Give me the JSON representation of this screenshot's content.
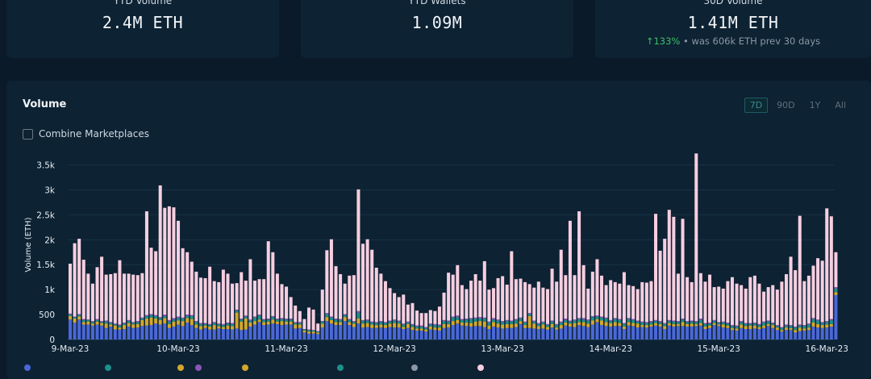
{
  "stats": [
    {
      "label": "YTD Volume",
      "value": "2.4M ETH",
      "sub_change": "",
      "sub_text": ""
    },
    {
      "label": "YTD Wallets",
      "value": "1.09M",
      "sub_change": "",
      "sub_text": ""
    },
    {
      "label": "30D Volume",
      "value": "1.41M ETH",
      "sub_change": "↑133%",
      "sub_text": " • was 606k ETH prev 30 days"
    }
  ],
  "panel": {
    "title": "Volume",
    "combine_label": "Combine Marketplaces",
    "ranges": [
      "7D",
      "90D",
      "1Y",
      "All"
    ],
    "active_range": "7D"
  },
  "colors": {
    "pink": "#f6cfe0",
    "blue": "#4a68d8",
    "yellow": "#d4a72c",
    "teal": "#1f8f8a",
    "purple": "#8a56b8",
    "grid": "#163246",
    "axis_text": "#e6edf3"
  },
  "chart_data": {
    "type": "bar",
    "stacked": true,
    "ylabel": "Volume (ETH)",
    "ylim": [
      0,
      3800
    ],
    "yticks": [
      0,
      500,
      1000,
      1500,
      2000,
      2500,
      3000,
      3500
    ],
    "ytick_labels": [
      "0",
      "500",
      "1k",
      "1.5k",
      "2k",
      "2.5k",
      "3k",
      "3.5k"
    ],
    "xtick_labels": [
      "9-Mar-23",
      "10-Mar-23",
      "11-Mar-23",
      "12-Mar-23",
      "13-Mar-23",
      "14-Mar-23",
      "15-Mar-23",
      "16-Mar-23"
    ],
    "grid": true,
    "totals": [
      1520,
      1930,
      2020,
      1600,
      1320,
      1120,
      1450,
      1660,
      1300,
      1310,
      1330,
      1590,
      1320,
      1320,
      1300,
      1290,
      1330,
      2570,
      1840,
      1770,
      3090,
      2640,
      2670,
      2650,
      2380,
      1830,
      1750,
      1560,
      1360,
      1240,
      1230,
      1460,
      1170,
      1150,
      1400,
      1320,
      1120,
      1130,
      1350,
      1180,
      1610,
      1180,
      1210,
      1210,
      1970,
      1750,
      1320,
      1110,
      1060,
      850,
      680,
      570,
      410,
      640,
      600,
      320,
      1000,
      1790,
      2010,
      1470,
      1310,
      1120,
      1280,
      1290,
      3010,
      1920,
      2010,
      1800,
      1440,
      1320,
      1170,
      1030,
      930,
      850,
      900,
      700,
      730,
      580,
      530,
      530,
      590,
      570,
      660,
      940,
      1340,
      1300,
      1490,
      1090,
      1010,
      1180,
      1310,
      1180,
      1570,
      1000,
      1030,
      1230,
      1270,
      1100,
      1770,
      1210,
      1220,
      1150,
      1110,
      1040,
      1160,
      1040,
      1010,
      1420,
      1160,
      1800,
      1290,
      2380,
      1290,
      2570,
      1490,
      1020,
      1360,
      1610,
      1280,
      1090,
      1190,
      1150,
      1120,
      1350,
      1090,
      1070,
      1010,
      1150,
      1140,
      1170,
      2520,
      1780,
      2020,
      2600,
      2460,
      1320,
      2420,
      1250,
      1150,
      3730,
      1330,
      1160,
      1300,
      1050,
      1060,
      1020,
      1170,
      1250,
      1120,
      1090,
      1020,
      1250,
      1280,
      1120,
      960,
      1050,
      1090,
      1000,
      1160,
      1310,
      1660,
      1390,
      2480,
      1170,
      1280,
      1480,
      1630,
      1580,
      2630,
      2470,
      1750
    ],
    "series": [
      {
        "name": "",
        "values": [
          400,
          340,
          400,
          300,
          300,
          280,
          300,
          280,
          230,
          260,
          200,
          200,
          210,
          260,
          230,
          240,
          270,
          280,
          290,
          320,
          300,
          320,
          230,
          260,
          300,
          270,
          340,
          290,
          230,
          200,
          230,
          200,
          200,
          220,
          210,
          210,
          200,
          220,
          190,
          200,
          260,
          300,
          350,
          290,
          300,
          320,
          310,
          290,
          300,
          300,
          220,
          230,
          140,
          120,
          120,
          110,
          240,
          370,
          320,
          290,
          290,
          370,
          290,
          250,
          320,
          240,
          250,
          230,
          230,
          240,
          230,
          250,
          240,
          240,
          210,
          230,
          190,
          180,
          180,
          160,
          200,
          190,
          180,
          230,
          240,
          290,
          320,
          280,
          270,
          260,
          270,
          270,
          250,
          210,
          260,
          240,
          220,
          230,
          230,
          250,
          310,
          230,
          230,
          220,
          210,
          220,
          200,
          240,
          200,
          220,
          280,
          260,
          250,
          290,
          270,
          250,
          300,
          350,
          290,
          270,
          260,
          270,
          270,
          210,
          280,
          270,
          240,
          250,
          240,
          260,
          280,
          260,
          210,
          280,
          260,
          270,
          270,
          260,
          260,
          270,
          280,
          210,
          230,
          290,
          270,
          240,
          230,
          190,
          180,
          230,
          210,
          210,
          220,
          210,
          230,
          270,
          230,
          190,
          160,
          190,
          190,
          140,
          170,
          180,
          190,
          260,
          240,
          230,
          240,
          260,
          890,
          920,
          460
        ]
      },
      {
        "name": "",
        "values": [
          70,
          80,
          60,
          50,
          60,
          40,
          60,
          50,
          90,
          40,
          80,
          40,
          80,
          70,
          70,
          70,
          120,
          140,
          150,
          100,
          90,
          110,
          80,
          100,
          80,
          100,
          90,
          120,
          70,
          70,
          50,
          60,
          90,
          50,
          40,
          70,
          70,
          320,
          170,
          220,
          80,
          70,
          50,
          60,
          60,
          80,
          50,
          80,
          60,
          60,
          80,
          70,
          40,
          40,
          40,
          30,
          80,
          80,
          70,
          60,
          60,
          80,
          60,
          70,
          100,
          80,
          80,
          70,
          60,
          60,
          60,
          70,
          90,
          80,
          40,
          80,
          60,
          40,
          40,
          40,
          60,
          50,
          60,
          80,
          70,
          80,
          70,
          60,
          70,
          70,
          90,
          100,
          110,
          70,
          90,
          80,
          80,
          80,
          80,
          70,
          60,
          60,
          240,
          100,
          60,
          80,
          50,
          70,
          40,
          70,
          60,
          60,
          80,
          60,
          80,
          70,
          80,
          60,
          90,
          80,
          70,
          80,
          60,
          50,
          70,
          60,
          80,
          40,
          50,
          40,
          50,
          50,
          60,
          50,
          50,
          40,
          80,
          50,
          60,
          40,
          50,
          50,
          50,
          40,
          30,
          60,
          50,
          40,
          40,
          70,
          60,
          70,
          60,
          40,
          50,
          40,
          60,
          50,
          30,
          50,
          40,
          50,
          70,
          40,
          50,
          80,
          70,
          60,
          60,
          50,
          60,
          70,
          50
        ]
      },
      {
        "name": "",
        "values": [
          30,
          30,
          30,
          40,
          30,
          30,
          30,
          20,
          40,
          30,
          20,
          40,
          30,
          40,
          30,
          40,
          30,
          50,
          50,
          50,
          40,
          40,
          50,
          40,
          50,
          50,
          40,
          60,
          50,
          40,
          30,
          30,
          40,
          30,
          40,
          40,
          40,
          40,
          40,
          40,
          40,
          70,
          80,
          40,
          40,
          50,
          40,
          40,
          40,
          40,
          30,
          30,
          20,
          30,
          20,
          20,
          40,
          60,
          50,
          50,
          40,
          40,
          40,
          30,
          120,
          50,
          50,
          40,
          40,
          50,
          40,
          40,
          50,
          40,
          50,
          30,
          40,
          40,
          40,
          30,
          40,
          50,
          40,
          60,
          50,
          70,
          60,
          50,
          60,
          80,
          60,
          50,
          60,
          60,
          50,
          60,
          50,
          60,
          50,
          70,
          50,
          50,
          40,
          40,
          40,
          40,
          40,
          50,
          50,
          50,
          50,
          40,
          50,
          60,
          50,
          60,
          70,
          50,
          60,
          70,
          40,
          60,
          60,
          50,
          60,
          60,
          40,
          50,
          40,
          50,
          40,
          40,
          40,
          40,
          50,
          40,
          50,
          40,
          40,
          40,
          60,
          50,
          40,
          40,
          30,
          40,
          40,
          40,
          40,
          50,
          40,
          30,
          40,
          40,
          60,
          50,
          30,
          30,
          40,
          40,
          40,
          50,
          40,
          50,
          60,
          70,
          70,
          40,
          50,
          80,
          70,
          60,
          50
        ]
      },
      {
        "name": "",
        "values": [
          20,
          10,
          20,
          20,
          10,
          20,
          20,
          20,
          20,
          20,
          20,
          20,
          20,
          20,
          20,
          20,
          20,
          20,
          20,
          20,
          20,
          30,
          30,
          30,
          30,
          20,
          30,
          20,
          20,
          20,
          20,
          20,
          20,
          20,
          20,
          20,
          20,
          20,
          20,
          20,
          20,
          20,
          20,
          20,
          20,
          20,
          20,
          20,
          20,
          20,
          20,
          20,
          10,
          10,
          10,
          10,
          10,
          20,
          20,
          20,
          20,
          20,
          20,
          20,
          30,
          20,
          20,
          20,
          20,
          20,
          20,
          20,
          20,
          20,
          20,
          20,
          20,
          20,
          20,
          20,
          20,
          20,
          20,
          20,
          20,
          20,
          30,
          20,
          20,
          20,
          20,
          30,
          20,
          20,
          30,
          20,
          20,
          20,
          20,
          20,
          20,
          20,
          20,
          20,
          20,
          20,
          20,
          20,
          20,
          20,
          30,
          20,
          20,
          20,
          30,
          20,
          20,
          20,
          20,
          20,
          20,
          20,
          20,
          20,
          20,
          20,
          20,
          20,
          20,
          20,
          20,
          20,
          20,
          20,
          20,
          20,
          20,
          20,
          20,
          20,
          30,
          20,
          20,
          20,
          20,
          20,
          20,
          20,
          20,
          20,
          20,
          20,
          20,
          20,
          20,
          20,
          20,
          20,
          20,
          20,
          20,
          20,
          20,
          20,
          20,
          20,
          20,
          20,
          20,
          20,
          30,
          20,
          20
        ]
      }
    ]
  }
}
